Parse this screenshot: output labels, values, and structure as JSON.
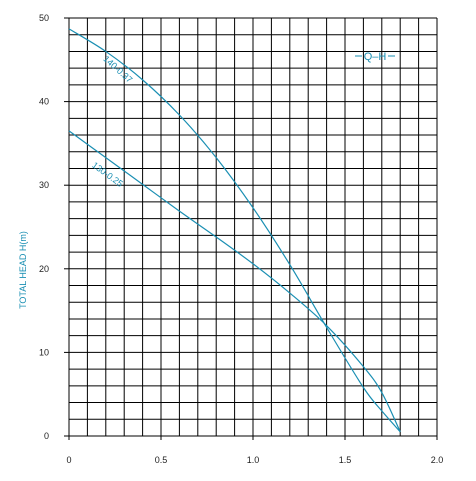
{
  "chart_data": {
    "type": "line",
    "title": "",
    "xlabel": "",
    "ylabel": "TOTAL HEAD H(m)",
    "legend_text": "Q–H",
    "legend_placement": "top-right",
    "xlim": [
      0,
      2.0
    ],
    "ylim": [
      0,
      50
    ],
    "grid": true,
    "x_ticks": [
      "0",
      "0.5",
      "1.0",
      "1.5",
      "2.0"
    ],
    "y_ticks": [
      "0",
      "10",
      "20",
      "30",
      "40",
      "50"
    ],
    "series": [
      {
        "name": "140-0.37",
        "x": [
          0,
          0.2,
          0.4,
          0.6,
          0.8,
          1.0,
          1.2,
          1.4,
          1.6,
          1.7,
          1.8
        ],
        "y": [
          48.7,
          46.0,
          42.6,
          38.4,
          33.3,
          27.3,
          20.5,
          13.0,
          5.8,
          3.0,
          0.5
        ]
      },
      {
        "name": "130-0.25",
        "x": [
          0,
          0.2,
          0.4,
          0.6,
          0.8,
          1.0,
          1.2,
          1.4,
          1.6,
          1.7,
          1.8
        ],
        "y": [
          36.5,
          33.3,
          30.1,
          26.9,
          23.8,
          20.6,
          17.1,
          13.2,
          8.3,
          5.2,
          0.5
        ]
      }
    ],
    "colors": {
      "curve": "#1a8fb3",
      "label": "#1a8fb3",
      "grid": "#000000",
      "tick": "#222222"
    }
  }
}
